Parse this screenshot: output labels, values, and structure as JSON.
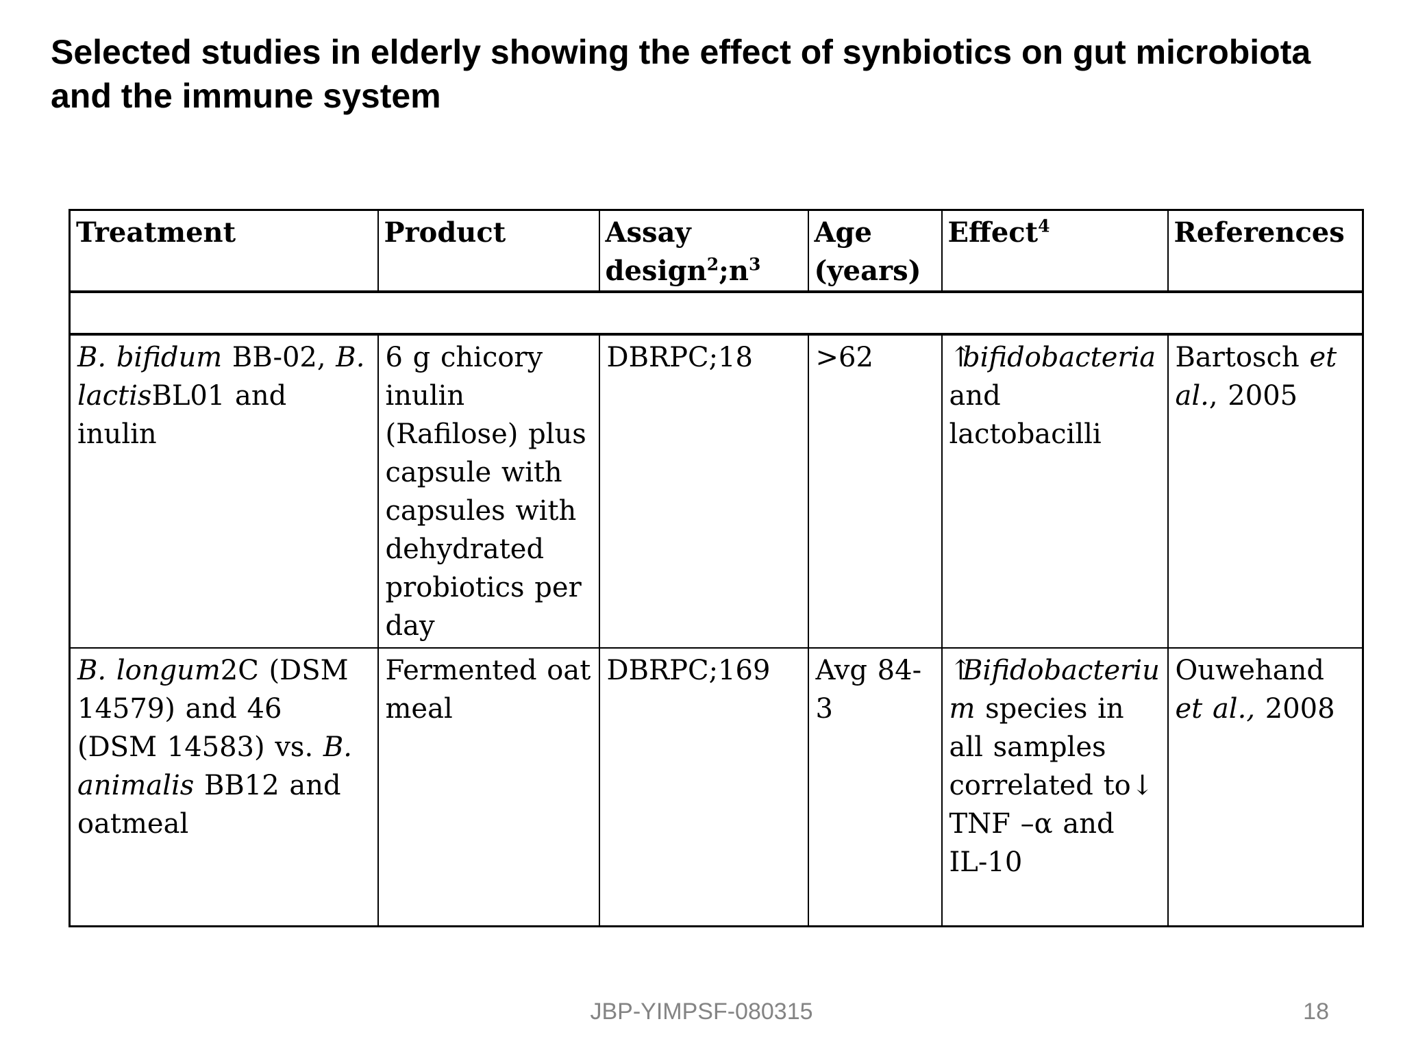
{
  "slide": {
    "title": "Selected studies in elderly showing the effect of synbiotics on gut microbiota and the immune system",
    "footer": {
      "doc_id": "JBP-YIMPSF-080315",
      "page_number": "18"
    }
  },
  "colors": {
    "bg": "#ffffff",
    "text": "#000000",
    "border": "#000000",
    "muted": "#848484"
  },
  "table": {
    "headers": [
      {
        "runs": [
          {
            "t": "Treatment"
          }
        ]
      },
      {
        "runs": [
          {
            "t": "Product"
          }
        ]
      },
      {
        "runs": [
          {
            "t": "Assay design"
          },
          {
            "t": "2",
            "sup": true
          },
          {
            "t": ";n"
          },
          {
            "t": "3",
            "sup": true
          }
        ]
      },
      {
        "runs": [
          {
            "t": "Age (years)"
          }
        ]
      },
      {
        "runs": [
          {
            "t": "Effect"
          },
          {
            "t": "4",
            "sup": true
          }
        ]
      },
      {
        "runs": [
          {
            "t": "References"
          }
        ]
      }
    ],
    "rows": [
      {
        "cells": [
          {
            "runs": [
              {
                "t": "B. bifidum",
                "i": true
              },
              {
                "t": " BB-02, "
              },
              {
                "t": "B. lactis",
                "i": true
              },
              {
                "t": "BL01 and inulin"
              }
            ]
          },
          {
            "runs": [
              {
                "t": "6 g chicory inulin (Rafilose) plus capsule with capsules with dehydrated probiotics per day"
              }
            ]
          },
          {
            "runs": [
              {
                "t": "DBRPC;18"
              }
            ]
          },
          {
            "runs": [
              {
                "t": ">62"
              }
            ]
          },
          {
            "runs": [
              {
                "t": "↑",
                "ar": true
              },
              {
                "t": "bifidobacteria",
                "i": true
              },
              {
                "t": " and lactobacilli"
              }
            ]
          },
          {
            "runs": [
              {
                "t": "Bartosch "
              },
              {
                "t": "et al.",
                "i": true
              },
              {
                "t": ", 2005"
              }
            ]
          }
        ]
      },
      {
        "cells": [
          {
            "runs": [
              {
                "t": "B. longum",
                "i": true
              },
              {
                "t": "2C (DSM 14579) and 46 (DSM 14583) vs. "
              },
              {
                "t": "B. animalis",
                "i": true
              },
              {
                "t": " BB12 and oatmeal"
              }
            ]
          },
          {
            "runs": [
              {
                "t": "Fermented oat meal"
              }
            ]
          },
          {
            "runs": [
              {
                "t": "DBRPC;169"
              }
            ]
          },
          {
            "runs": [
              {
                "t": "Avg 84-3"
              }
            ]
          },
          {
            "runs": [
              {
                "t": "↑",
                "ar": true
              },
              {
                "t": "Bifidobacterium",
                "i": true
              },
              {
                "t": " species in all samples correlated to"
              },
              {
                "t": "↓",
                "ar": true
              },
              {
                "t": " TNF –α and IL-10"
              }
            ]
          },
          {
            "runs": [
              {
                "t": "Ouwehand "
              },
              {
                "t": "et al.,",
                "i": true
              },
              {
                "t": " 2008"
              }
            ]
          }
        ]
      }
    ]
  }
}
